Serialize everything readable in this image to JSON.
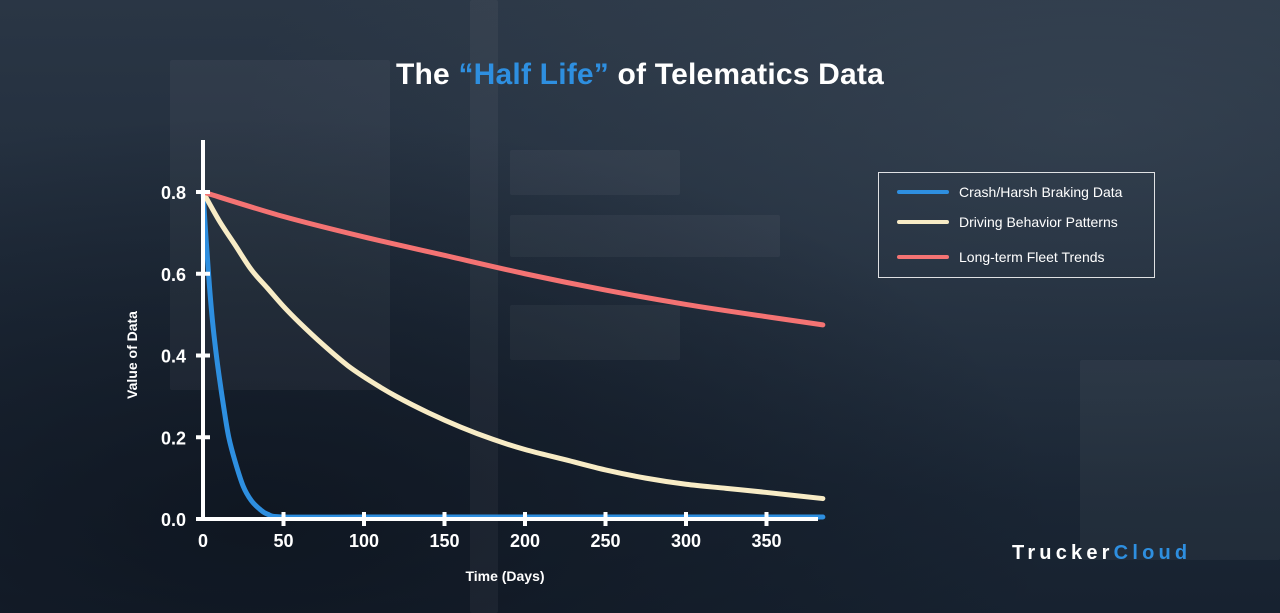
{
  "title": {
    "prefix": "The ",
    "highlight": "“Half Life”",
    "suffix": " of Telematics Data"
  },
  "brand": {
    "part1": "Trucker",
    "part2": "Cloud"
  },
  "chart_data": {
    "type": "line",
    "xlabel": "Time (Days)",
    "ylabel": "Value of Data",
    "xlim": [
      0,
      385
    ],
    "ylim": [
      0,
      0.9
    ],
    "xticks": [
      0,
      50,
      100,
      150,
      200,
      250,
      300,
      350
    ],
    "yticks": [
      0.0,
      0.2,
      0.4,
      0.6,
      0.8
    ],
    "ytick_labels": [
      "0.0",
      "0.2",
      "0.4",
      "0.6",
      "0.8"
    ],
    "grid": false,
    "legend_position": "top-right",
    "series": [
      {
        "name": "Crash/Harsh Braking Data",
        "color": "#2e8fe0",
        "x": [
          0,
          2,
          4,
          6,
          8,
          10,
          13,
          16,
          20,
          25,
          30,
          35,
          40,
          50,
          100,
          200,
          300,
          385
        ],
        "y": [
          0.8,
          0.68,
          0.57,
          0.48,
          0.41,
          0.35,
          0.27,
          0.2,
          0.14,
          0.08,
          0.045,
          0.025,
          0.012,
          0.005,
          0.005,
          0.005,
          0.005,
          0.005
        ]
      },
      {
        "name": "Driving Behavior Patterns",
        "color": "#f8ecc6",
        "x": [
          0,
          10,
          20,
          30,
          40,
          50,
          60,
          75,
          90,
          105,
          120,
          140,
          160,
          180,
          200,
          225,
          250,
          275,
          300,
          325,
          350,
          385
        ],
        "y": [
          0.8,
          0.73,
          0.67,
          0.61,
          0.565,
          0.52,
          0.48,
          0.425,
          0.375,
          0.335,
          0.3,
          0.26,
          0.225,
          0.195,
          0.17,
          0.145,
          0.12,
          0.1,
          0.085,
          0.075,
          0.065,
          0.05
        ]
      },
      {
        "name": "Long-term Fleet Trends",
        "color": "#f47373",
        "x": [
          0,
          50,
          100,
          150,
          200,
          250,
          300,
          350,
          385
        ],
        "y": [
          0.8,
          0.74,
          0.69,
          0.645,
          0.6,
          0.56,
          0.525,
          0.495,
          0.475
        ]
      }
    ]
  }
}
